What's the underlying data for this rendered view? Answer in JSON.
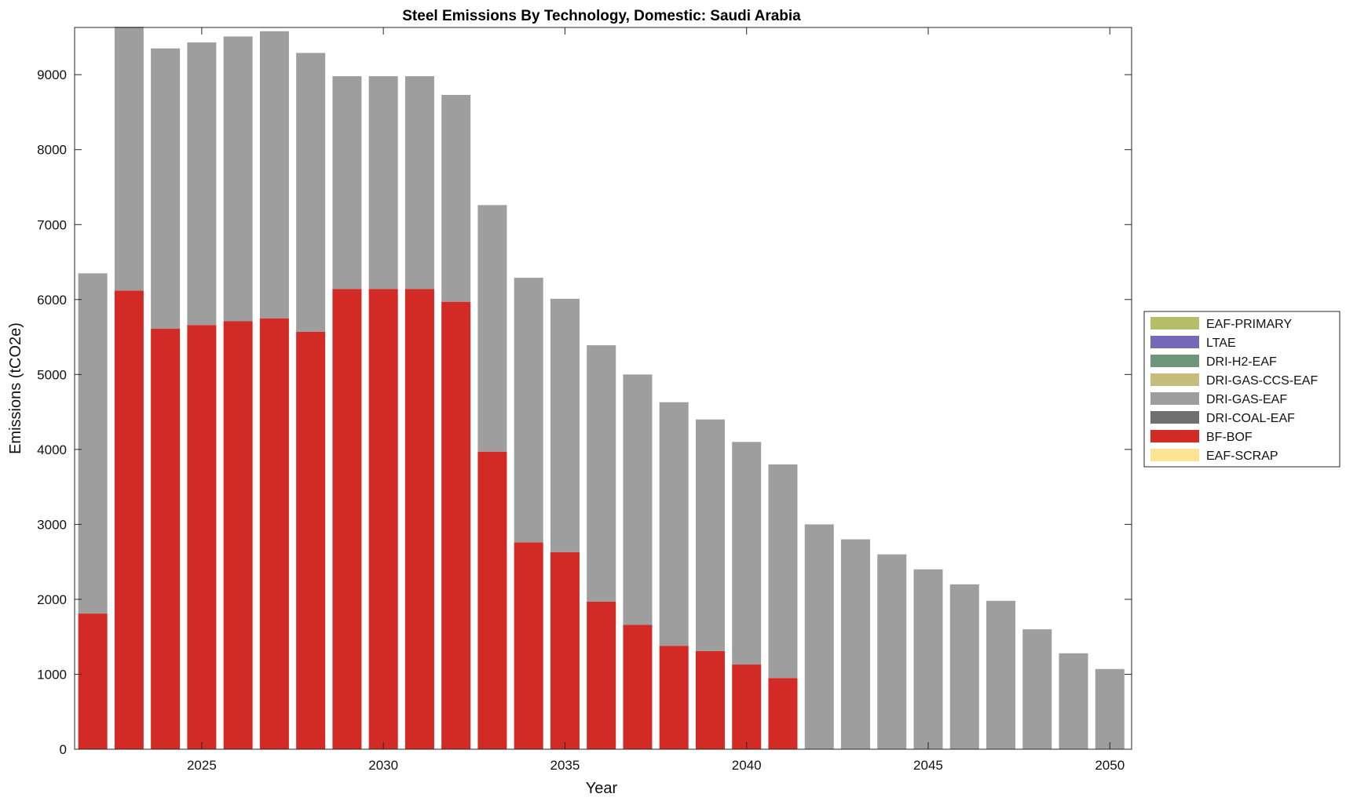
{
  "chart_data": {
    "type": "bar",
    "stacked": true,
    "title": "Steel Emissions By Technology, Domestic: Saudi Arabia",
    "xlabel": "Year",
    "ylabel": "Emissions (tCO2e)",
    "xlim": [
      2021.5,
      2050.6
    ],
    "ylim": [
      0,
      9630
    ],
    "xticks": [
      2025,
      2030,
      2035,
      2040,
      2045,
      2050
    ],
    "yticks": [
      0,
      1000,
      2000,
      3000,
      4000,
      5000,
      6000,
      7000,
      8000,
      9000
    ],
    "x": [
      2022,
      2023,
      2024,
      2025,
      2026,
      2027,
      2028,
      2029,
      2030,
      2031,
      2032,
      2033,
      2034,
      2035,
      2036,
      2037,
      2038,
      2039,
      2040,
      2041,
      2042,
      2043,
      2044,
      2045,
      2046,
      2047,
      2048,
      2049,
      2050
    ],
    "grid": false,
    "legend_position": "outside-right",
    "series": [
      {
        "name": "EAF-PRIMARY",
        "color": "#b5bd68",
        "values": [
          0,
          0,
          0,
          0,
          0,
          0,
          0,
          0,
          0,
          0,
          0,
          0,
          0,
          0,
          0,
          0,
          0,
          0,
          0,
          0,
          0,
          0,
          0,
          0,
          0,
          0,
          0,
          0,
          0
        ]
      },
      {
        "name": "LTAE",
        "color": "#7668b8",
        "values": [
          0,
          0,
          0,
          0,
          0,
          0,
          0,
          0,
          0,
          0,
          0,
          0,
          0,
          0,
          0,
          0,
          0,
          0,
          0,
          0,
          0,
          0,
          0,
          0,
          0,
          0,
          0,
          0,
          0
        ]
      },
      {
        "name": "DRI-H2-EAF",
        "color": "#6e967a",
        "values": [
          0,
          0,
          0,
          0,
          0,
          0,
          0,
          0,
          0,
          0,
          0,
          0,
          0,
          0,
          0,
          0,
          0,
          0,
          0,
          0,
          0,
          0,
          0,
          0,
          0,
          0,
          0,
          0,
          0
        ]
      },
      {
        "name": "DRI-GAS-CCS-EAF",
        "color": "#c5bd7c",
        "values": [
          0,
          0,
          0,
          0,
          0,
          0,
          0,
          0,
          0,
          0,
          0,
          0,
          0,
          0,
          0,
          0,
          0,
          0,
          0,
          0,
          0,
          0,
          0,
          0,
          0,
          0,
          0,
          0,
          0
        ]
      },
      {
        "name": "DRI-GAS-EAF",
        "color": "#9e9e9e",
        "values": [
          4540,
          3520,
          3740,
          3770,
          3800,
          3830,
          3720,
          2840,
          2840,
          2840,
          2760,
          3290,
          3530,
          3380,
          3420,
          3340,
          3250,
          3090,
          2970,
          2850,
          3000,
          2800,
          2600,
          2400,
          2200,
          1980,
          1600,
          1280,
          1070
        ]
      },
      {
        "name": "DRI-COAL-EAF",
        "color": "#6f6f6f",
        "values": [
          0,
          0,
          0,
          0,
          0,
          0,
          0,
          0,
          0,
          0,
          0,
          0,
          0,
          0,
          0,
          0,
          0,
          0,
          0,
          0,
          0,
          0,
          0,
          0,
          0,
          0,
          0,
          0,
          0
        ]
      },
      {
        "name": "BF-BOF",
        "color": "#d22a24",
        "values": [
          1810,
          6120,
          5610,
          5660,
          5710,
          5750,
          5570,
          6140,
          6140,
          6140,
          5970,
          3970,
          2760,
          2630,
          1970,
          1660,
          1380,
          1310,
          1130,
          950,
          0,
          0,
          0,
          0,
          0,
          0,
          0,
          0,
          0
        ]
      },
      {
        "name": "EAF-SCRAP",
        "color": "#fde495",
        "values": [
          0,
          0,
          0,
          0,
          0,
          0,
          0,
          0,
          0,
          0,
          0,
          0,
          0,
          0,
          0,
          0,
          0,
          0,
          0,
          0,
          0,
          0,
          0,
          0,
          0,
          0,
          0,
          0,
          0
        ]
      }
    ],
    "stack_order": [
      "EAF-SCRAP",
      "BF-BOF",
      "DRI-COAL-EAF",
      "DRI-GAS-EAF",
      "DRI-GAS-CCS-EAF",
      "DRI-H2-EAF",
      "LTAE",
      "EAF-PRIMARY"
    ]
  }
}
